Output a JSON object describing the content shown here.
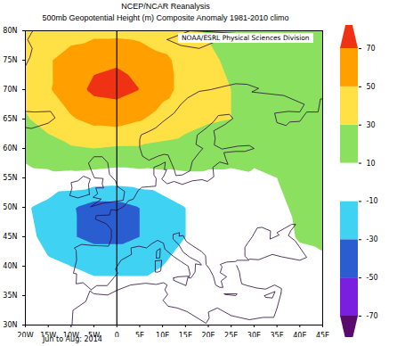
{
  "chart_data": {
    "type": "contour",
    "title": "NCEP/NCAR Reanalysis",
    "subtitle": "500mb Geopotential Height (m) Composite Anomaly 1981-2010 climo",
    "credit": "NOAA/ESRL Physical Sciences Division",
    "caption": "Jun to Aug: 2014",
    "x": [
      -20,
      -15,
      -10,
      -5,
      0,
      5,
      10,
      15,
      20,
      25,
      30,
      35,
      40,
      45
    ],
    "y": [
      30,
      35,
      40,
      45,
      50,
      55,
      60,
      65,
      70,
      75,
      80
    ],
    "values": [
      [
        4,
        4,
        2,
        0,
        0,
        0,
        0,
        0,
        0,
        2,
        2,
        2,
        4,
        4
      ],
      [
        2,
        0,
        -4,
        -6,
        -6,
        -6,
        -6,
        -4,
        -2,
        0,
        0,
        2,
        4,
        6
      ],
      [
        -4,
        -8,
        -10,
        -12,
        -12,
        -12,
        -10,
        -6,
        -4,
        -2,
        0,
        2,
        6,
        8
      ],
      [
        -6,
        -14,
        -28,
        -36,
        -36,
        -30,
        -20,
        -10,
        -4,
        -2,
        2,
        6,
        11,
        12
      ],
      [
        -8,
        -16,
        -28,
        -38,
        -37,
        -30,
        -20,
        -10,
        -4,
        0,
        4,
        8,
        12,
        12
      ],
      [
        4,
        5,
        4,
        2,
        0,
        2,
        4,
        6,
        6,
        6,
        8,
        10,
        12,
        12
      ],
      [
        16,
        22,
        28,
        30,
        28,
        28,
        26,
        24,
        20,
        18,
        14,
        13,
        12,
        12
      ],
      [
        28,
        38,
        48,
        56,
        58,
        52,
        42,
        36,
        32,
        30,
        20,
        15,
        13,
        12
      ],
      [
        36,
        48,
        62,
        74,
        76,
        70,
        56,
        44,
        36,
        30,
        20,
        16,
        14,
        12
      ],
      [
        38,
        48,
        58,
        66,
        68,
        64,
        54,
        44,
        34,
        26,
        20,
        16,
        13,
        11
      ],
      [
        30,
        38,
        42,
        44,
        44,
        42,
        38,
        34,
        28,
        22,
        18,
        15,
        12,
        10
      ]
    ],
    "xlim": [
      -20,
      45
    ],
    "ylim": [
      30,
      80
    ],
    "xticks": [
      {
        "value": -20,
        "label": "20W"
      },
      {
        "value": -15,
        "label": "15W"
      },
      {
        "value": -10,
        "label": "10W"
      },
      {
        "value": -5,
        "label": "5W"
      },
      0,
      {
        "value": 5,
        "label": "5E"
      },
      {
        "value": 10,
        "label": "10E"
      },
      {
        "value": 15,
        "label": "15E"
      },
      {
        "value": 20,
        "label": "20E"
      },
      {
        "value": 25,
        "label": "25E"
      },
      {
        "value": 30,
        "label": "30E"
      },
      {
        "value": 35,
        "label": "35E"
      },
      {
        "value": 40,
        "label": "40E"
      },
      {
        "value": 45,
        "label": "45E"
      }
    ],
    "yticks": [
      {
        "value": 30,
        "label": "30N"
      },
      {
        "value": 35,
        "label": "35N"
      },
      {
        "value": 40,
        "label": "40N"
      },
      {
        "value": 45,
        "label": "45N"
      },
      {
        "value": 50,
        "label": "50N"
      },
      {
        "value": 55,
        "label": "55N"
      },
      {
        "value": 60,
        "label": "60N"
      },
      {
        "value": 65,
        "label": "65N"
      },
      {
        "value": 70,
        "label": "70N"
      },
      {
        "value": 75,
        "label": "75N"
      },
      {
        "value": 80,
        "label": "80N"
      }
    ],
    "levels": [
      -70,
      -50,
      -30,
      -10,
      10,
      30,
      50,
      70
    ],
    "colors": [
      "#5a0a6e",
      "#7a1ee0",
      "#2a5ed0",
      "#3fd2f2",
      "#ffffff",
      "#8ce060",
      "#ffe045",
      "#ffa000",
      "#f03214"
    ],
    "colorbar_ticks": [
      -70,
      -50,
      -30,
      -10,
      10,
      30,
      50,
      70
    ],
    "vlines": [
      0
    ]
  }
}
